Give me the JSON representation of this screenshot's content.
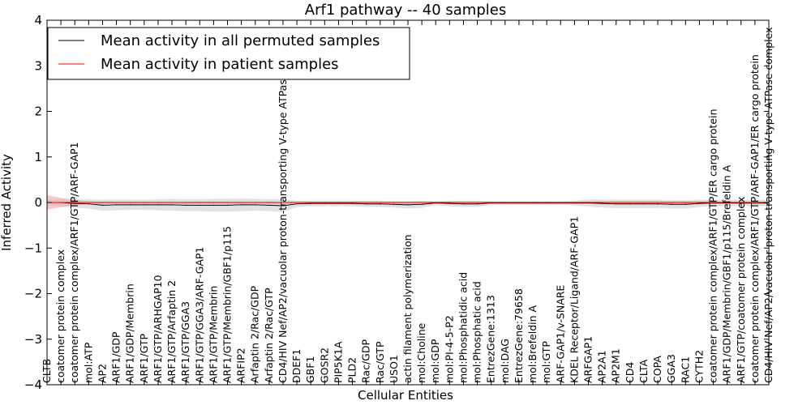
{
  "chart_data": {
    "type": "line",
    "title": "Arf1 pathway -- 40 samples",
    "xlabel": "Cellular Entities",
    "ylabel": "Inferred Activity",
    "ylim": [
      -4,
      4
    ],
    "yticks": [
      -4,
      -3,
      -2,
      -1,
      0,
      1,
      2,
      3,
      4
    ],
    "legend_location": "upper-left",
    "categories": [
      "CLTB",
      "coatomer protein complex",
      "coatomer protein complex/ARF1/GTP/ARF-GAP1",
      "mol:ATP",
      "AP2",
      "ARF1/GDP",
      "ARF1/GDP/Membrin",
      "ARF1/GTP",
      "ARF1/GTP/ARHGAP10",
      "ARF1/GTP/Arfaptin 2",
      "ARF1/GTP/GGA3",
      "ARF1/GTP/GGA3/ARF-GAP1",
      "ARF1/GTP/Membrin",
      "ARF1/GTP/Membrin/GBF1/p115",
      "ARFIP2",
      "Arfaptin 2/Rac/GDP",
      "Arfaptin 2/Rac/GTP",
      "CD4/HIV Nef/AP2/vacuolar proton-transporting V-type ATPase complex",
      "DDEF1",
      "GBF1",
      "GOSR2",
      "PIP5K1A",
      "PLD2",
      "Rac/GDP",
      "Rac/GTP",
      "USO1",
      "actin filament polymerization",
      "mol:Choline",
      "mol:GDP",
      "mol:PI-4-5-P2",
      "mol:Phosphatidic acid",
      "mol:Phosphatic acid",
      "EntrezGene:1313",
      "mol:DAG",
      "EntrezGene:79658",
      "mol:Brefeldin A",
      "mol:GTP",
      "ARF-GAP1/v-SNARE",
      "KDEL Receptor/Ligand/ARF-GAP1",
      "ARFGAP1",
      "AP2A1",
      "AP2M1",
      "CD4",
      "CLTA",
      "COPA",
      "GGA3",
      "RAC1",
      "CYTH2",
      "coatomer protein complex/ARF1/GTP/ER cargo protein",
      "ARF1/GDP/Membrin/GBF1/p115/Brefeldin A",
      "ARF1/GTP/coatomer protein complex",
      "coatomer protein complex/ARF1/GTP/ARF-GAP1/ER cargo protein",
      "CD4/HIV Nef/AP2/vacuolar proton-transporting V-type ATPase complex"
    ],
    "series": [
      {
        "name": "Mean activity in all permuted samples",
        "color": "#000000",
        "band_color": "#c8c8c8",
        "values": [
          0,
          0,
          -0.02,
          -0.03,
          -0.06,
          -0.05,
          -0.05,
          -0.05,
          -0.05,
          -0.05,
          -0.06,
          -0.06,
          -0.06,
          -0.06,
          -0.05,
          -0.05,
          -0.06,
          -0.07,
          -0.03,
          -0.02,
          -0.02,
          -0.02,
          -0.02,
          -0.03,
          -0.03,
          -0.04,
          -0.05,
          -0.04,
          -0.01,
          -0.02,
          -0.03,
          -0.03,
          -0.01,
          -0.01,
          -0.01,
          -0.01,
          -0.01,
          -0.01,
          -0.01,
          -0.01,
          -0.02,
          -0.03,
          -0.03,
          -0.03,
          -0.03,
          -0.04,
          -0.04,
          -0.02,
          -0.01,
          -0.01,
          -0.01,
          -0.01,
          -0.01
        ],
        "band_half_width": [
          0.06,
          0.08,
          0.09,
          0.1,
          0.12,
          0.12,
          0.11,
          0.11,
          0.12,
          0.13,
          0.13,
          0.13,
          0.14,
          0.14,
          0.14,
          0.13,
          0.13,
          0.14,
          0.07,
          0.06,
          0.06,
          0.06,
          0.06,
          0.07,
          0.07,
          0.07,
          0.08,
          0.08,
          0.04,
          0.06,
          0.07,
          0.07,
          0.04,
          0.04,
          0.04,
          0.04,
          0.04,
          0.04,
          0.05,
          0.08,
          0.09,
          0.09,
          0.09,
          0.09,
          0.09,
          0.09,
          0.09,
          0.08,
          0.07,
          0.07,
          0.07,
          0.07,
          0.07
        ]
      },
      {
        "name": "Mean activity in patient samples",
        "color": "#ff0000",
        "band_color": "#f4a6a6",
        "values": [
          0,
          0,
          0,
          0,
          0,
          0,
          0,
          0,
          0,
          0,
          0,
          0,
          0,
          0,
          0,
          0,
          0,
          0,
          0,
          0,
          0,
          0,
          0,
          0,
          0,
          0,
          0,
          0,
          0,
          0,
          0,
          0,
          0,
          0,
          0,
          0,
          0,
          0,
          0,
          0,
          0,
          0,
          0,
          0,
          0,
          0,
          0,
          0,
          0,
          0,
          0,
          0,
          0
        ],
        "band_half_width": [
          0.16,
          0.1,
          0.06,
          0.03,
          0.02,
          0.02,
          0.02,
          0.02,
          0.02,
          0.02,
          0.02,
          0.02,
          0.02,
          0.02,
          0.02,
          0.02,
          0.02,
          0.02,
          0.02,
          0.02,
          0.02,
          0.02,
          0.02,
          0.02,
          0.02,
          0.02,
          0.02,
          0.02,
          0.02,
          0.02,
          0.02,
          0.02,
          0.02,
          0.02,
          0.02,
          0.02,
          0.02,
          0.02,
          0.02,
          0.03,
          0.03,
          0.03,
          0.03,
          0.03,
          0.03,
          0.03,
          0.03,
          0.03,
          0.03,
          0.03,
          0.03,
          0.03,
          0.03
        ]
      }
    ]
  }
}
